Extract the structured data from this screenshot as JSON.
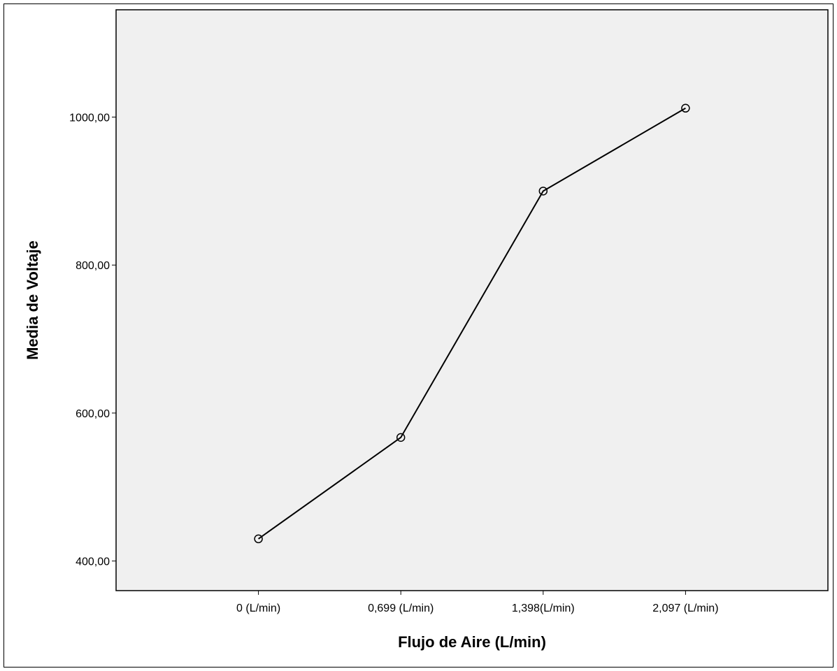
{
  "chart_data": {
    "type": "line",
    "title": "",
    "xlabel": "Flujo de Aire (L/min)",
    "ylabel": "Media de Voltaje",
    "categories": [
      "0 (L/min)",
      "0,699 (L/min)",
      "1,398(L/min)",
      "2,097 (L/min)"
    ],
    "series": [
      {
        "values": [
          430,
          567,
          900,
          1012
        ],
        "marker": "open-circle"
      }
    ],
    "yticks": [
      400,
      600,
      800,
      1000
    ],
    "ytick_labels": [
      "400,00",
      "600,00",
      "800,00",
      "1000,00"
    ],
    "ylim": [
      360,
      1145
    ],
    "grid": false,
    "legend": "none",
    "colors": {
      "plot_background": "#f0f0f0",
      "line": "#000000",
      "axis": "#000000"
    }
  }
}
